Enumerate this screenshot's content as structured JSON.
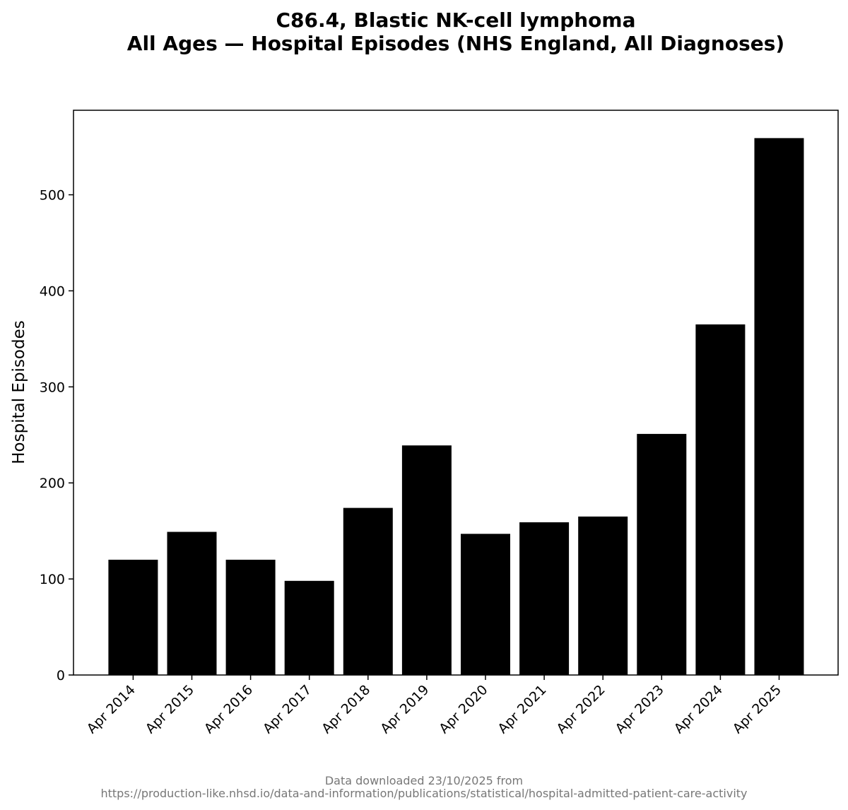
{
  "chart_data": {
    "type": "bar",
    "title_lines": [
      "C86.4, Blastic NK-cell lymphoma",
      "All Ages — Hospital Episodes (NHS England, All Diagnoses)"
    ],
    "xlabel": "",
    "ylabel": "Hospital Episodes",
    "categories": [
      "Apr 2014",
      "Apr 2015",
      "Apr 2016",
      "Apr 2017",
      "Apr 2018",
      "Apr 2019",
      "Apr 2020",
      "Apr 2021",
      "Apr 2022",
      "Apr 2023",
      "Apr 2024",
      "Apr 2025"
    ],
    "values": [
      120,
      149,
      120,
      98,
      174,
      239,
      147,
      159,
      165,
      251,
      365,
      559
    ],
    "ylim": [
      0,
      588
    ],
    "yticks": [
      0,
      100,
      200,
      300,
      400,
      500
    ],
    "grid": false,
    "bar_color": "#000000"
  },
  "footer": {
    "line1": "Data downloaded 23/10/2025 from",
    "line2": "https://production-like.nhsd.io/data-and-information/publications/statistical/hospital-admitted-patient-care-activity"
  }
}
